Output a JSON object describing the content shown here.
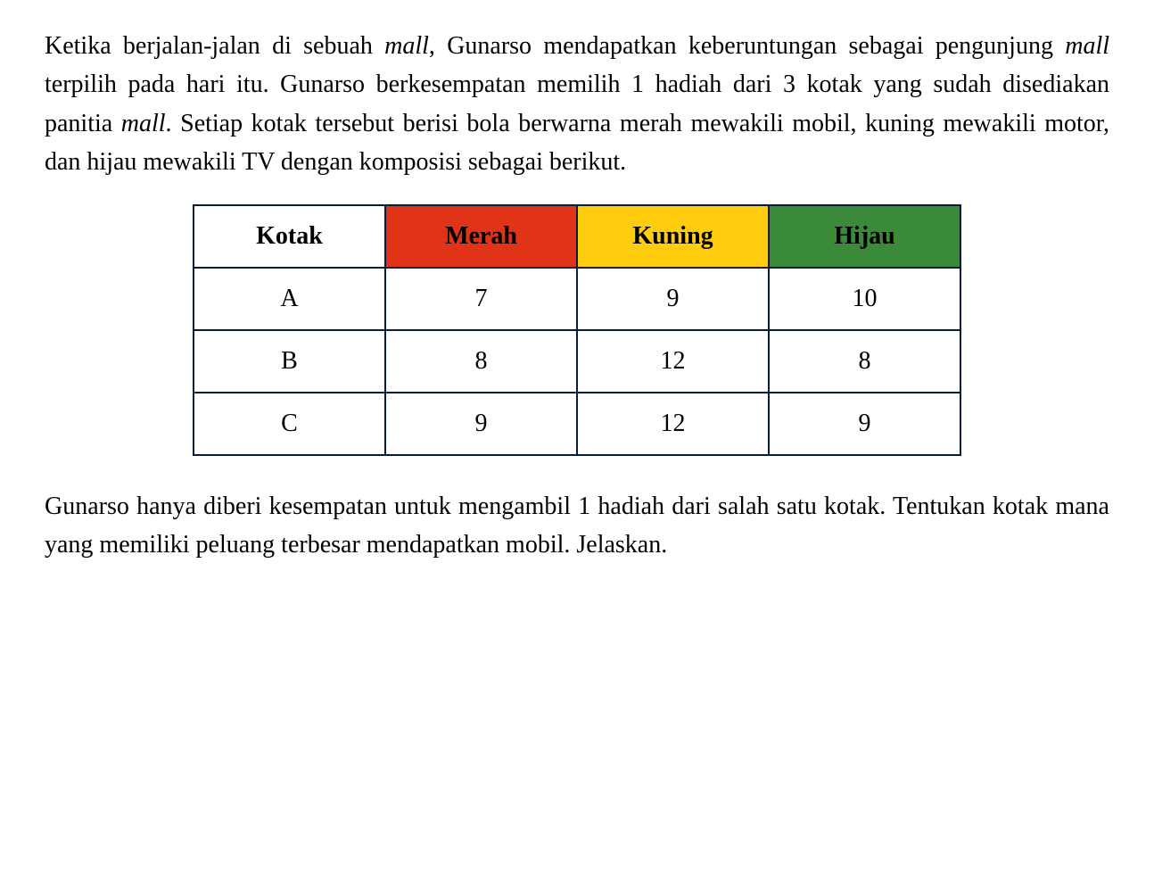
{
  "paragraph1": {
    "part1": "Ketika berjalan-jalan di sebuah ",
    "italic1": "mall",
    "part2": ", Gunarso mendapatkan keberuntungan sebagai pengunjung ",
    "italic2": "mall",
    "part3": " terpilih pada hari itu. Gunarso berkesempatan memilih 1 hadiah dari 3 kotak yang sudah disediakan panitia ",
    "italic3": "mall",
    "part4": ". Setiap kotak tersebut berisi bola berwarna merah mewakili mobil, kuning mewakili motor, dan hijau mewakili TV dengan komposisi sebagai berikut."
  },
  "table": {
    "headers": {
      "kotak": "Kotak",
      "merah": "Merah",
      "kuning": "Kuning",
      "hijau": "Hijau"
    },
    "header_colors": {
      "kotak_bg": "#ffffff",
      "merah_bg": "#e03318",
      "kuning_bg": "#ffcc0e",
      "hijau_bg": "#3a8a3a"
    },
    "border_color": "#0a1a3a",
    "rows": [
      {
        "label": "A",
        "merah": "7",
        "kuning": "9",
        "hijau": "10"
      },
      {
        "label": "B",
        "merah": "8",
        "kuning": "12",
        "hijau": "8"
      },
      {
        "label": "C",
        "merah": "9",
        "kuning": "12",
        "hijau": "9"
      }
    ],
    "column_widths": {
      "kotak": 215,
      "color": 215
    },
    "font_size": 28,
    "cell_padding": 18
  },
  "paragraph2": "Gunarso hanya diberi kesempatan untuk mengambil 1 hadiah dari salah satu kotak. Tentukan kotak mana yang memiliki peluang terbesar mendapatkan mobil. Jelaskan.",
  "styling": {
    "background_color": "#ffffff",
    "text_color": "#000000",
    "font_family": "Times New Roman",
    "body_font_size": 28,
    "line_height": 1.55
  }
}
